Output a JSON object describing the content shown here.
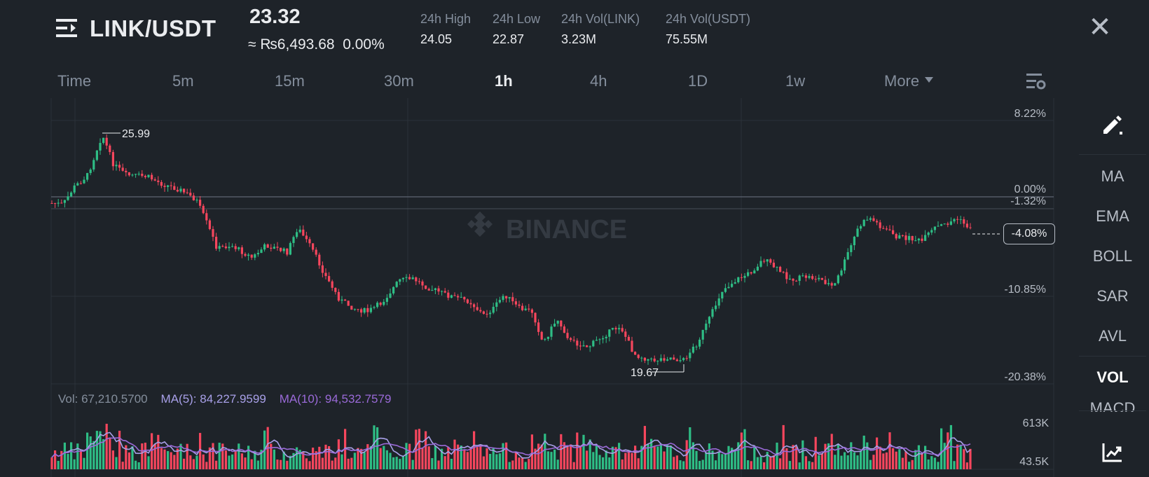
{
  "header": {
    "pair": "LINK/USDT",
    "price": "23.32",
    "approx_price": "≈ ₨6,493.68",
    "change": "0.00%",
    "stats": [
      {
        "label": "24h High",
        "value": "24.05"
      },
      {
        "label": "24h Low",
        "value": "22.87"
      },
      {
        "label": "24h Vol(LINK)",
        "value": "3.23M"
      },
      {
        "label": "24h Vol(USDT)",
        "value": "75.55M"
      }
    ]
  },
  "tabs": [
    "Time",
    "5m",
    "15m",
    "30m",
    "1h",
    "4h",
    "1D",
    "1w"
  ],
  "active_tab": "1h",
  "more_label": "More",
  "side_menu": [
    "MA",
    "EMA",
    "BOLL",
    "SAR",
    "AVL",
    "VOL",
    "MACD"
  ],
  "active_side": "VOL",
  "watermark": "BINANCE",
  "chart_data": {
    "type": "candlestick",
    "price_axis_labels": [
      "8.22%",
      "0.00%",
      "-1.32%",
      "-10.85%",
      "-20.38%"
    ],
    "current_change_tag": "-4.08%",
    "high_marker": "25.99",
    "low_marker": "19.67",
    "volume_axis_labels": [
      "613K",
      "43.5K"
    ],
    "volume_legend": {
      "vol": "Vol: 67,210.5700",
      "ma5": "MA(5): 84,227.9599",
      "ma10": "MA(10): 94,532.7579"
    }
  },
  "colors": {
    "background": "#1e2329",
    "up": "#2ebd85",
    "down": "#f6465d",
    "ma5": "#a8a0e8",
    "ma10": "#9a6ad8",
    "text_muted": "#848e9c"
  }
}
